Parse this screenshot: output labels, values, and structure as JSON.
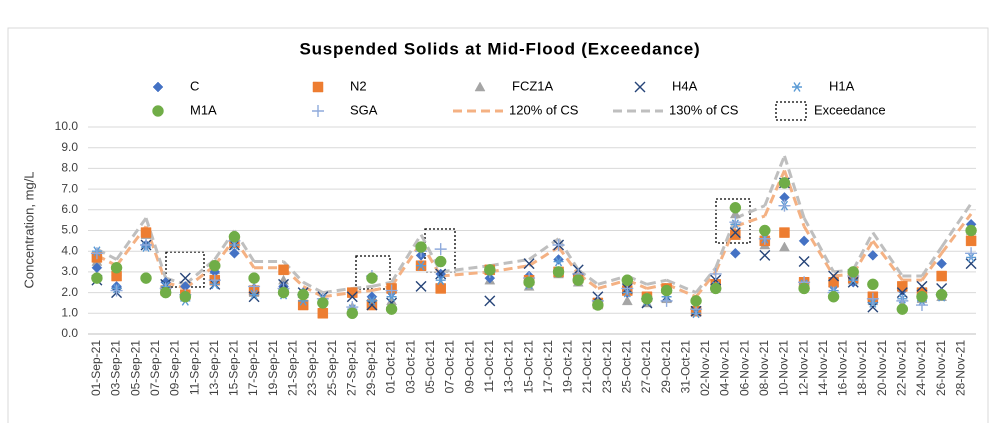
{
  "chart_data": {
    "type": "line",
    "title": "Suspended Solids at Mid-Flood (Exceedance)",
    "y_label": "Concentration, mg/L",
    "categories": [
      "01-Sep-21",
      null,
      "03-Sep-21",
      null,
      "05-Sep-21",
      null,
      "07-Sep-21",
      null,
      "09-Sep-21",
      null,
      "11-Sep-21",
      null,
      "13-Sep-21",
      null,
      "15-Sep-21",
      null,
      "17-Sep-21",
      null,
      "19-Sep-21",
      null,
      "21-Sep-21",
      null,
      "23-Sep-21",
      null,
      "25-Sep-21",
      null,
      "27-Sep-21",
      null,
      "29-Sep-21",
      null,
      "01-Oct-21",
      null,
      "03-Oct-21",
      null,
      "05-Oct-21",
      null,
      "07-Oct-21",
      null,
      "09-Oct-21",
      null,
      "11-Oct-21",
      null,
      "13-Oct-21",
      null,
      "15-Oct-21",
      null,
      "17-Oct-21",
      null,
      "19-Oct-21",
      null,
      "21-Oct-21",
      null,
      "23-Oct-21",
      null,
      "25-Oct-21",
      null,
      "27-Oct-21",
      null,
      "29-Oct-21",
      null,
      "31-Oct-21",
      null,
      "02-Nov-21",
      null,
      "04-Nov-21",
      null,
      "06-Nov-21",
      null,
      "08-Nov-21",
      null,
      "10-Nov-21",
      null,
      "12-Nov-21",
      null,
      "14-Nov-21",
      null,
      "16-Nov-21",
      null,
      "18-Nov-21",
      null,
      "20-Nov-21",
      null,
      "22-Nov-21",
      null,
      "24-Nov-21",
      null,
      "26-Nov-21",
      null,
      "28-Nov-21",
      null
    ],
    "ylim": [
      0,
      10
    ],
    "yticks": [
      {
        "value": 0,
        "label": "0.0"
      },
      {
        "value": 1,
        "label": "1.0"
      },
      {
        "value": 2,
        "label": "2.0"
      },
      {
        "value": 3,
        "label": "3.0"
      },
      {
        "value": 4,
        "label": "4.0"
      },
      {
        "value": 5,
        "label": "5.0"
      },
      {
        "value": 6,
        "label": "6.0"
      },
      {
        "value": 7,
        "label": "7.0"
      },
      {
        "value": 8,
        "label": "8.0"
      },
      {
        "value": 9,
        "label": "9.0"
      },
      {
        "value": 10,
        "label": "10.0"
      }
    ],
    "grid": true,
    "annotation_legend": "Exceedance",
    "series": [
      {
        "name": "C",
        "color": "#4472c4",
        "marker": "diamond",
        "values": [
          3.2,
          null,
          2.3,
          null,
          null,
          4.3,
          null,
          2.5,
          null,
          2.3,
          null,
          null,
          3.0,
          null,
          3.9,
          null,
          2.2,
          null,
          null,
          2.3,
          null,
          2.0,
          null,
          1.6,
          null,
          null,
          1.0,
          null,
          1.8,
          null,
          2.0,
          null,
          null,
          3.8,
          null,
          2.9,
          null,
          null,
          null,
          null,
          2.7,
          null,
          null,
          null,
          2.8,
          null,
          null,
          3.6,
          null,
          2.7,
          null,
          1.6,
          null,
          null,
          2.0,
          null,
          1.8,
          null,
          2.0,
          null,
          null,
          1.2,
          null,
          2.5,
          null,
          3.9,
          null,
          null,
          4.6,
          null,
          6.6,
          null,
          4.5,
          null,
          null,
          2.3,
          null,
          2.5,
          null,
          3.8,
          null,
          null,
          2.1,
          null,
          2.1,
          null,
          3.4,
          null,
          null,
          5.3
        ]
      },
      {
        "name": "N2",
        "color": "#ed7d31",
        "marker": "square",
        "values": [
          3.7,
          null,
          2.8,
          null,
          null,
          4.9,
          null,
          2.1,
          null,
          1.9,
          null,
          null,
          2.6,
          null,
          4.4,
          null,
          2.1,
          null,
          null,
          3.1,
          null,
          1.4,
          null,
          1.0,
          null,
          null,
          2.0,
          null,
          1.4,
          null,
          2.2,
          null,
          null,
          3.3,
          null,
          2.2,
          null,
          null,
          null,
          null,
          3.1,
          null,
          null,
          null,
          2.6,
          null,
          null,
          3.0,
          null,
          2.7,
          null,
          1.5,
          null,
          null,
          2.1,
          null,
          1.8,
          null,
          2.2,
          null,
          null,
          1.1,
          null,
          2.4,
          null,
          4.8,
          null,
          null,
          4.5,
          null,
          4.9,
          null,
          2.5,
          null,
          null,
          2.5,
          null,
          2.7,
          null,
          1.8,
          null,
          null,
          2.3,
          null,
          2.0,
          null,
          2.8,
          null,
          null,
          4.5
        ]
      },
      {
        "name": "FCZ1A",
        "color": "#a5a5a5",
        "marker": "triangle",
        "values": [
          3.5,
          null,
          3.0,
          null,
          null,
          4.8,
          null,
          2.1,
          null,
          1.9,
          null,
          null,
          3.1,
          null,
          4.6,
          null,
          2.0,
          null,
          null,
          2.6,
          null,
          1.5,
          null,
          1.3,
          null,
          null,
          1.3,
          null,
          1.8,
          null,
          1.6,
          null,
          null,
          3.3,
          null,
          2.4,
          null,
          null,
          null,
          null,
          2.6,
          null,
          null,
          null,
          2.3,
          null,
          null,
          2.9,
          null,
          2.5,
          null,
          1.4,
          null,
          null,
          1.6,
          null,
          1.5,
          null,
          1.7,
          null,
          null,
          1.3,
          null,
          2.2,
          null,
          5.8,
          null,
          null,
          4.3,
          null,
          4.2,
          null,
          2.3,
          null,
          null,
          2.0,
          null,
          2.6,
          null,
          1.6,
          null,
          null,
          1.4,
          null,
          1.7,
          null,
          1.8,
          null,
          null,
          5.0
        ]
      },
      {
        "name": "H4A",
        "color": "#264478",
        "marker": "x",
        "values": [
          2.6,
          null,
          2.0,
          null,
          null,
          4.3,
          null,
          2.4,
          null,
          2.7,
          null,
          null,
          2.4,
          null,
          4.3,
          null,
          1.8,
          null,
          null,
          2.4,
          null,
          2.0,
          null,
          1.8,
          null,
          null,
          1.8,
          null,
          1.4,
          null,
          1.5,
          null,
          null,
          2.3,
          null,
          2.9,
          null,
          null,
          null,
          null,
          1.6,
          null,
          null,
          null,
          3.4,
          null,
          null,
          4.3,
          null,
          3.1,
          null,
          1.8,
          null,
          null,
          2.2,
          null,
          1.5,
          null,
          1.8,
          null,
          null,
          1.1,
          null,
          2.6,
          null,
          4.9,
          null,
          null,
          3.8,
          null,
          7.3,
          null,
          3.5,
          null,
          null,
          2.8,
          null,
          2.5,
          null,
          1.3,
          null,
          null,
          2.0,
          null,
          2.3,
          null,
          2.2,
          null,
          null,
          3.4
        ]
      },
      {
        "name": "H1A",
        "color": "#5b9bd5",
        "marker": "star",
        "values": [
          4.0,
          null,
          2.2,
          null,
          null,
          4.2,
          null,
          2.3,
          null,
          1.6,
          null,
          null,
          2.4,
          null,
          4.3,
          null,
          1.9,
          null,
          null,
          1.9,
          null,
          1.6,
          null,
          1.7,
          null,
          null,
          1.2,
          null,
          1.6,
          null,
          1.8,
          null,
          null,
          3.3,
          null,
          2.6,
          null,
          null,
          null,
          null,
          3.1,
          null,
          null,
          null,
          2.4,
          null,
          null,
          3.5,
          null,
          2.6,
          null,
          1.4,
          null,
          null,
          2.0,
          null,
          1.6,
          null,
          1.8,
          null,
          null,
          1.0,
          null,
          2.3,
          null,
          5.3,
          null,
          null,
          4.6,
          null,
          6.2,
          null,
          2.4,
          null,
          null,
          2.1,
          null,
          2.6,
          null,
          1.5,
          null,
          null,
          1.7,
          null,
          1.6,
          null,
          1.8,
          null,
          null,
          3.7
        ]
      },
      {
        "name": "M1A",
        "color": "#70ad47",
        "marker": "circle",
        "values": [
          2.7,
          null,
          3.2,
          null,
          null,
          2.7,
          null,
          2.0,
          null,
          1.8,
          null,
          null,
          3.3,
          null,
          4.7,
          null,
          2.7,
          null,
          null,
          2.0,
          null,
          1.9,
          null,
          1.5,
          null,
          null,
          1.0,
          null,
          2.7,
          null,
          1.2,
          null,
          null,
          4.2,
          null,
          3.5,
          null,
          null,
          null,
          null,
          3.1,
          null,
          null,
          null,
          2.5,
          null,
          null,
          3.0,
          null,
          2.6,
          null,
          1.4,
          null,
          null,
          2.6,
          null,
          1.7,
          null,
          2.1,
          null,
          null,
          1.6,
          null,
          2.2,
          null,
          6.1,
          null,
          null,
          5.0,
          null,
          7.3,
          null,
          2.2,
          null,
          null,
          1.8,
          null,
          3.0,
          null,
          2.4,
          null,
          null,
          1.2,
          null,
          1.8,
          null,
          1.9,
          null,
          null,
          5.0
        ]
      },
      {
        "name": "SGA",
        "color": "#8faadc",
        "marker": "plus",
        "values": [
          3.9,
          null,
          2.1,
          null,
          null,
          4.3,
          null,
          2.2,
          null,
          1.9,
          null,
          null,
          2.6,
          null,
          4.5,
          null,
          2.3,
          null,
          null,
          2.2,
          null,
          1.9,
          null,
          1.7,
          null,
          null,
          1.3,
          null,
          2.8,
          null,
          2.1,
          null,
          null,
          4.0,
          null,
          4.1,
          null,
          null,
          null,
          null,
          3.0,
          null,
          null,
          null,
          2.7,
          null,
          null,
          4.3,
          null,
          2.9,
          null,
          1.6,
          null,
          null,
          2.2,
          null,
          1.7,
          null,
          1.6,
          null,
          null,
          1.2,
          null,
          2.9,
          null,
          5.4,
          null,
          null,
          4.6,
          null,
          6.2,
          null,
          2.5,
          null,
          null,
          2.0,
          null,
          2.8,
          null,
          1.7,
          null,
          null,
          1.6,
          null,
          1.4,
          null,
          1.9,
          null,
          null,
          3.9
        ]
      },
      {
        "name": "120% of CS",
        "color": "#f4b183",
        "marker": "dash",
        "values": [
          3.8,
          null,
          3.3,
          null,
          null,
          5.2,
          null,
          2.5,
          null,
          2.2,
          null,
          null,
          3.3,
          null,
          4.6,
          null,
          3.2,
          null,
          null,
          3.2,
          null,
          2.3,
          null,
          1.8,
          null,
          null,
          2.0,
          null,
          2.1,
          null,
          2.3,
          null,
          null,
          4.4,
          null,
          2.8,
          null,
          null,
          null,
          null,
          3.0,
          null,
          null,
          null,
          3.3,
          null,
          null,
          4.2,
          null,
          2.9,
          null,
          2.2,
          null,
          null,
          2.6,
          null,
          2.2,
          null,
          2.4,
          null,
          null,
          1.8,
          null,
          3.0,
          null,
          5.2,
          null,
          null,
          5.7,
          null,
          7.9,
          null,
          5.2,
          null,
          null,
          2.8,
          null,
          2.9,
          null,
          4.5,
          null,
          null,
          2.6,
          null,
          2.6,
          null,
          3.9,
          null,
          null,
          5.8
        ]
      },
      {
        "name": "130% of CS",
        "color": "#bfbfbf",
        "marker": "dash",
        "values": [
          4.1,
          null,
          3.6,
          null,
          null,
          5.6,
          null,
          2.7,
          null,
          2.4,
          null,
          null,
          3.6,
          null,
          5.0,
          null,
          3.5,
          null,
          null,
          3.5,
          null,
          2.5,
          null,
          2.0,
          null,
          null,
          2.2,
          null,
          2.3,
          null,
          2.5,
          null,
          null,
          4.8,
          null,
          3.0,
          null,
          null,
          null,
          null,
          3.3,
          null,
          null,
          null,
          3.6,
          null,
          null,
          4.6,
          null,
          3.1,
          null,
          2.4,
          null,
          null,
          2.8,
          null,
          2.4,
          null,
          2.6,
          null,
          null,
          2.0,
          null,
          3.2,
          null,
          5.6,
          null,
          null,
          6.2,
          null,
          8.6,
          null,
          5.6,
          null,
          null,
          3.0,
          null,
          3.1,
          null,
          4.9,
          null,
          null,
          2.8,
          null,
          2.8,
          null,
          4.2,
          null,
          null,
          6.3
        ]
      }
    ]
  }
}
